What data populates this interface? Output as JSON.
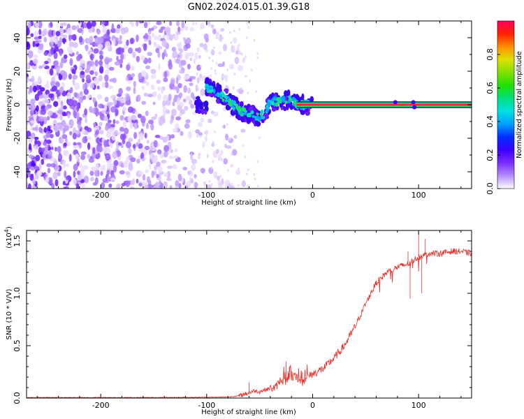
{
  "title": "GN02.2024.015.01.39.G18",
  "chart_data": [
    {
      "type": "heatmap",
      "title": "GN02.2024.015.01.39.G18",
      "xlabel": "Height of straight line (km)",
      "ylabel": "Frequency (Hz)",
      "xlim": [
        -270,
        150
      ],
      "ylim": [
        -50,
        50
      ],
      "x_ticks": [
        -200,
        -100,
        0,
        100
      ],
      "y_ticks": [
        -40,
        -20,
        0,
        20,
        40
      ],
      "colorbar": {
        "label": "Normalized spectral amplitude",
        "range": [
          0.0,
          1.0
        ],
        "ticks": [
          0.0,
          0.2,
          0.4,
          0.6,
          0.8
        ],
        "colors": [
          "#ffffff",
          "#b58cff",
          "#7b2cff",
          "#3b00ff",
          "#0030ff",
          "#00a0ff",
          "#00e0e0",
          "#00e080",
          "#20e000",
          "#80e000",
          "#e0e000",
          "#ff9000",
          "#ff2000",
          "#ff0060"
        ]
      },
      "noise_region": {
        "x": [
          -270,
          -65
        ],
        "y": [
          -50,
          50
        ]
      },
      "dominant_signal": [
        {
          "x": -100,
          "y": 10
        },
        {
          "x": -90,
          "y": 7
        },
        {
          "x": -80,
          "y": 3
        },
        {
          "x": -70,
          "y": -3
        },
        {
          "x": -60,
          "y": -6
        },
        {
          "x": -50,
          "y": -7
        },
        {
          "x": -45,
          "y": -5
        },
        {
          "x": -40,
          "y": 2
        },
        {
          "x": -30,
          "y": 2
        },
        {
          "x": -20,
          "y": 3
        },
        {
          "x": -15,
          "y": 0
        },
        {
          "x": -10,
          "y": 0
        },
        {
          "x": 0,
          "y": 0
        },
        {
          "x": 150,
          "y": 0
        }
      ]
    },
    {
      "type": "line",
      "xlabel": "Height of straight line (km)",
      "ylabel": "SNR (10 * V/V)",
      "y_multiplier_label": "(x10",
      "y_multiplier_exp": "4",
      "y_multiplier_close": ")",
      "xlim": [
        -270,
        150
      ],
      "ylim": [
        0,
        1.6
      ],
      "x_ticks": [
        -200,
        -100,
        0,
        100
      ],
      "y_ticks": [
        0.0,
        0.5,
        1.0,
        1.5
      ],
      "y_tick_labels": [
        "0.0",
        "0.5",
        "1.0",
        "1.5"
      ],
      "color": "#e8302a",
      "series": [
        {
          "x": [
            -270,
            -200,
            -150,
            -100,
            -80,
            -70,
            -60,
            -55,
            -50,
            -45,
            -40,
            -35,
            -30,
            -25,
            -20,
            -15,
            -10,
            -5,
            0,
            10,
            20,
            30,
            40,
            50,
            60,
            70,
            80,
            90,
            100,
            110,
            120,
            130,
            140,
            150
          ],
          "y": [
            0.005,
            0.005,
            0.005,
            0.008,
            0.01,
            0.02,
            0.05,
            0.07,
            0.06,
            0.08,
            0.09,
            0.1,
            0.18,
            0.15,
            0.2,
            0.2,
            0.15,
            0.2,
            0.23,
            0.28,
            0.38,
            0.5,
            0.68,
            0.9,
            1.1,
            1.2,
            1.25,
            1.28,
            1.35,
            1.38,
            1.38,
            1.4,
            1.4,
            1.38
          ]
        }
      ],
      "spikes": [
        {
          "x": -60,
          "y": 0.15
        },
        {
          "x": -25,
          "y": 0.35
        },
        {
          "x": -22,
          "y": 0.3
        },
        {
          "x": -10,
          "y": 0.25
        },
        {
          "x": 90,
          "y": 1.4
        },
        {
          "x": 92,
          "y": 0.95
        },
        {
          "x": 100,
          "y": 1.58
        },
        {
          "x": 103,
          "y": 1.0
        },
        {
          "x": 106,
          "y": 1.52
        }
      ]
    }
  ]
}
